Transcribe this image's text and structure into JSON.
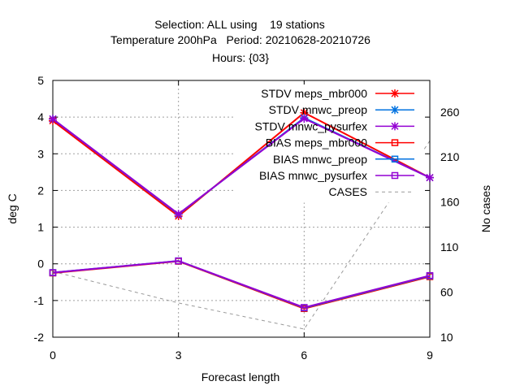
{
  "chart_data": {
    "type": "line",
    "title_lines": [
      "Selection: ALL using    19 stations",
      "Temperature 200hPa   Period: 20210628-20210726",
      "Hours: {03}"
    ],
    "xlabel": "Forecast length",
    "ylabel": "deg C",
    "y2label": "No cases",
    "x": [
      0,
      3,
      6,
      9
    ],
    "xlim": [
      0,
      9
    ],
    "ylim": [
      -2,
      5
    ],
    "y2lim": [
      10,
      295
    ],
    "xticks": [
      "0",
      "3",
      "6",
      "9"
    ],
    "yticks": [
      "-2",
      "-1",
      "0",
      "1",
      "2",
      "3",
      "4",
      "5"
    ],
    "y2ticks": [
      "10",
      "60",
      "110",
      "160",
      "210",
      "260"
    ],
    "grid": true,
    "legend_position": "top-right",
    "series": [
      {
        "name": "STDV meps_mbr000",
        "color": "#ff0000",
        "marker": "x",
        "values": [
          3.9,
          1.3,
          4.12,
          2.35
        ]
      },
      {
        "name": "STDV mnwc_preop",
        "color": "#0072e0",
        "marker": "x",
        "values": [
          3.95,
          1.35,
          3.98,
          2.35
        ]
      },
      {
        "name": "STDV mnwc_pysurfex",
        "color": "#9400d3",
        "marker": "x",
        "values": [
          3.95,
          1.36,
          3.96,
          2.35
        ]
      },
      {
        "name": "BIAS meps_mbr000",
        "color": "#ff0000",
        "marker": "square",
        "values": [
          -0.25,
          0.07,
          -1.22,
          -0.35
        ]
      },
      {
        "name": "BIAS mnwc_preop",
        "color": "#0072e0",
        "marker": "square",
        "values": [
          -0.24,
          0.08,
          -1.2,
          -0.33
        ]
      },
      {
        "name": "BIAS mnwc_pysurfex",
        "color": "#9400d3",
        "marker": "square",
        "values": [
          -0.24,
          0.08,
          -1.19,
          -0.32
        ]
      },
      {
        "name": "CASES",
        "color": "#999999",
        "marker": "none",
        "dash": true,
        "axis": "y2",
        "values": [
          83,
          48,
          19,
          228
        ]
      }
    ]
  }
}
